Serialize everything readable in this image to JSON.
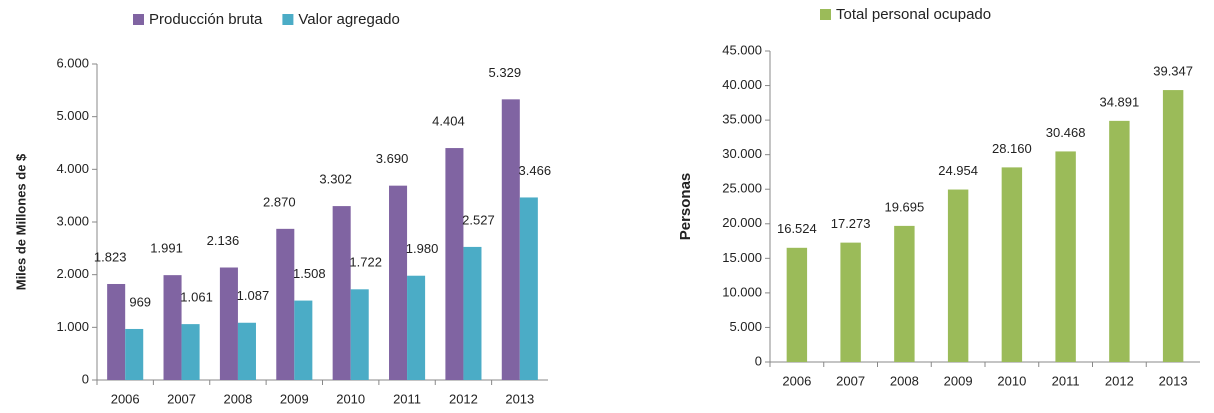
{
  "chart_data": [
    {
      "type": "bar",
      "y_label": "Miles de Millones de $",
      "categories": [
        "2006",
        "2007",
        "2008",
        "2009",
        "2010",
        "2011",
        "2012",
        "2013"
      ],
      "series": [
        {
          "name": "Producción bruta",
          "color": "#8064a2",
          "values": [
            1823,
            1991,
            2136,
            2870,
            3302,
            3690,
            4404,
            5329
          ],
          "value_labels": [
            "1.823",
            "1.991",
            "2.136",
            "2.870",
            "3.302",
            "3.690",
            "4.404",
            "5.329"
          ]
        },
        {
          "name": "Valor agregado",
          "color": "#4bacc6",
          "values": [
            969,
            1061,
            1087,
            1508,
            1722,
            1980,
            2527,
            3466
          ],
          "value_labels": [
            "969",
            "1.061",
            "1.087",
            "1.508",
            "1.722",
            "1.980",
            "2.527",
            "3.466"
          ]
        }
      ],
      "ylim": [
        0,
        6000
      ],
      "yticks": [
        0,
        {
          "value": 1000,
          "label": "1.000"
        },
        {
          "value": 2000,
          "label": "2.000"
        },
        {
          "value": 3000,
          "label": "3.000"
        },
        {
          "value": 4000,
          "label": "4.000"
        },
        {
          "value": 5000,
          "label": "5.000"
        },
        {
          "value": 6000,
          "label": "6.000"
        }
      ],
      "legend": "top",
      "grid": false
    },
    {
      "type": "bar",
      "y_label": "Personas",
      "categories": [
        "2006",
        "2007",
        "2008",
        "2009",
        "2010",
        "2011",
        "2012",
        "2013"
      ],
      "series": [
        {
          "name": "Total personal ocupado",
          "color": "#9bbb59",
          "values": [
            16524,
            17273,
            19695,
            24954,
            28160,
            30468,
            34891,
            39347
          ],
          "value_labels": [
            "16.524",
            "17.273",
            "19.695",
            "24.954",
            "28.160",
            "30.468",
            "34.891",
            "39.347"
          ]
        }
      ],
      "ylim": [
        0,
        45000
      ],
      "yticks": [
        0,
        {
          "value": 5000,
          "label": "5.000"
        },
        {
          "value": 10000,
          "label": "10.000"
        },
        {
          "value": 15000,
          "label": "15.000"
        },
        {
          "value": 20000,
          "label": "20.000"
        },
        {
          "value": 25000,
          "label": "25.000"
        },
        {
          "value": 30000,
          "label": "30.000"
        },
        {
          "value": 35000,
          "label": "35.000"
        },
        {
          "value": 40000,
          "label": "40.000"
        },
        {
          "value": 45000,
          "label": "45.000"
        }
      ],
      "legend": "top",
      "grid": false
    }
  ]
}
